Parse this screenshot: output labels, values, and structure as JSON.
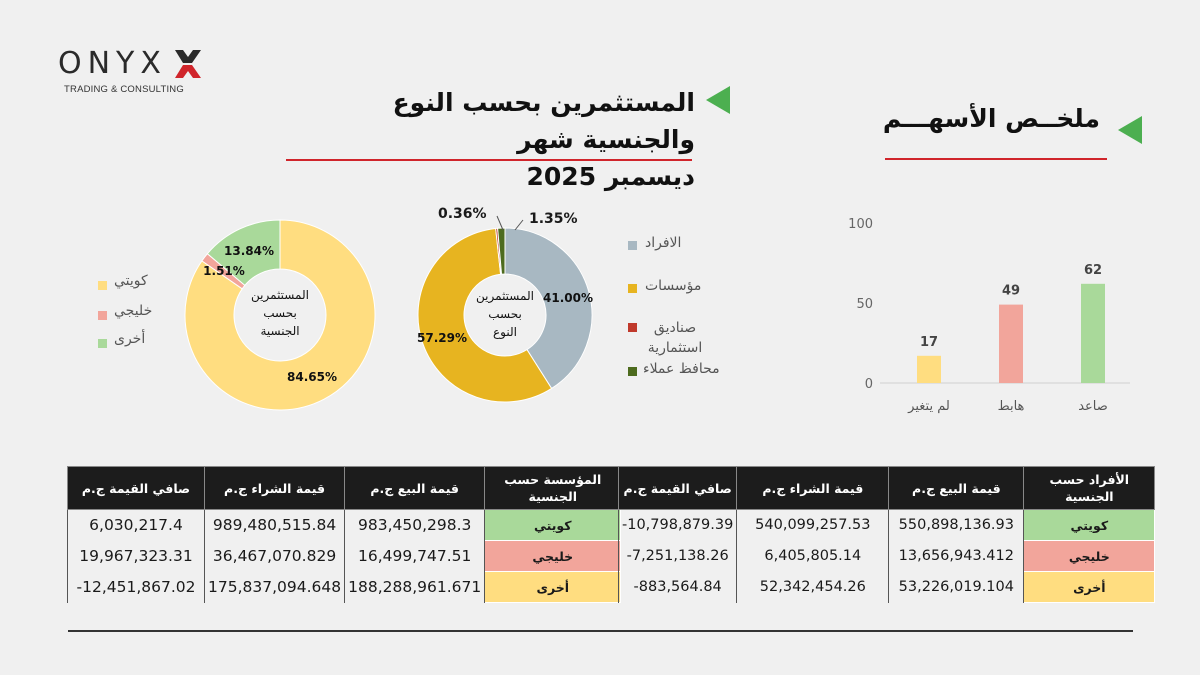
{
  "logo": {
    "name": "ONYX",
    "tagline": "TRADING & CONSULTING"
  },
  "main_title": {
    "line1": "المستثمرين بحسب النوع والجنسية شهر",
    "line2": "ديسمبر 2025"
  },
  "summary_title": "ملخــص الأسهـــم",
  "colors": {
    "accent_green": "#4caf50",
    "accent_red": "#d0252b",
    "kuwaiti": "#a9d99a",
    "gulf": "#f2a59b",
    "other": "#ffdd80"
  },
  "chart_data": [
    {
      "type": "pie",
      "title": "المستثمرين بحسب الجنسية",
      "center_label": [
        "المستثمرين",
        "بحسب",
        "الجنسية"
      ],
      "categories": [
        "كويتي",
        "خليجي",
        "أخرى"
      ],
      "values": [
        84.65,
        1.51,
        13.84
      ],
      "data_labels": [
        "84.65%",
        "1.51%",
        "13.84%"
      ],
      "colors": [
        "#ffdd80",
        "#f2a59b",
        "#a9d99a"
      ],
      "legend": "left"
    },
    {
      "type": "pie",
      "title": "المستثمرين بحسب النوع",
      "center_label": [
        "المستثمرين",
        "بحسب",
        "النوع"
      ],
      "categories": [
        "الافراد",
        "مؤسسات",
        "صناديق استثمارية",
        "محافظ عملاء"
      ],
      "values": [
        41.0,
        57.29,
        0.36,
        1.35
      ],
      "data_labels": [
        "41.00%",
        "57.29%",
        "0.36%",
        "1.35%"
      ],
      "colors": [
        "#a8b8c2",
        "#e7b420",
        "#c0392b",
        "#4d6b1e"
      ],
      "legend": "right"
    },
    {
      "type": "bar",
      "title": "ملخص الأسهم",
      "categories": [
        "لم يتغير",
        "هابط",
        "صاعد"
      ],
      "values": [
        17,
        49,
        62
      ],
      "colors": [
        "#ffdd80",
        "#f2a59b",
        "#a9d99a"
      ],
      "ylim": [
        0,
        100
      ],
      "yticks": [
        "0",
        "50",
        "100"
      ],
      "grid": false
    }
  ],
  "institutions_table": {
    "headers": [
      "صافي القيمة ج.م",
      "قيمة الشراء ج.م",
      "قيمة البيع ج.م",
      "المؤسسة حسب الجنسية"
    ],
    "rows": [
      {
        "net": "6,030,217.4",
        "buy": "989,480,515.84",
        "sell": "983,450,298.3",
        "cat": "كويتي"
      },
      {
        "net": "19,967,323.31",
        "buy": "36,467,070.829",
        "sell": "16,499,747.51",
        "cat": "خليجي"
      },
      {
        "net": "-12,451,867.02",
        "buy": "175,837,094.648",
        "sell": "188,288,961.671",
        "cat": "أخرى"
      }
    ]
  },
  "individuals_table": {
    "headers": [
      "صافي القيمة ج.م",
      "قيمة الشراء ج.م",
      "قيمة البيع ج.م",
      "الأفراد حسب الجنسية"
    ],
    "rows": [
      {
        "net": "-10,798,879.39",
        "buy": "540,099,257.53",
        "sell": "550,898,136.93",
        "cat": "كويتي"
      },
      {
        "net": "-7,251,138.26",
        "buy": "6,405,805.14",
        "sell": "13,656,943.412",
        "cat": "خليجي"
      },
      {
        "net": "-883,564.84",
        "buy": "52,342,454.26",
        "sell": "53,226,019.104",
        "cat": "أخرى"
      }
    ]
  }
}
